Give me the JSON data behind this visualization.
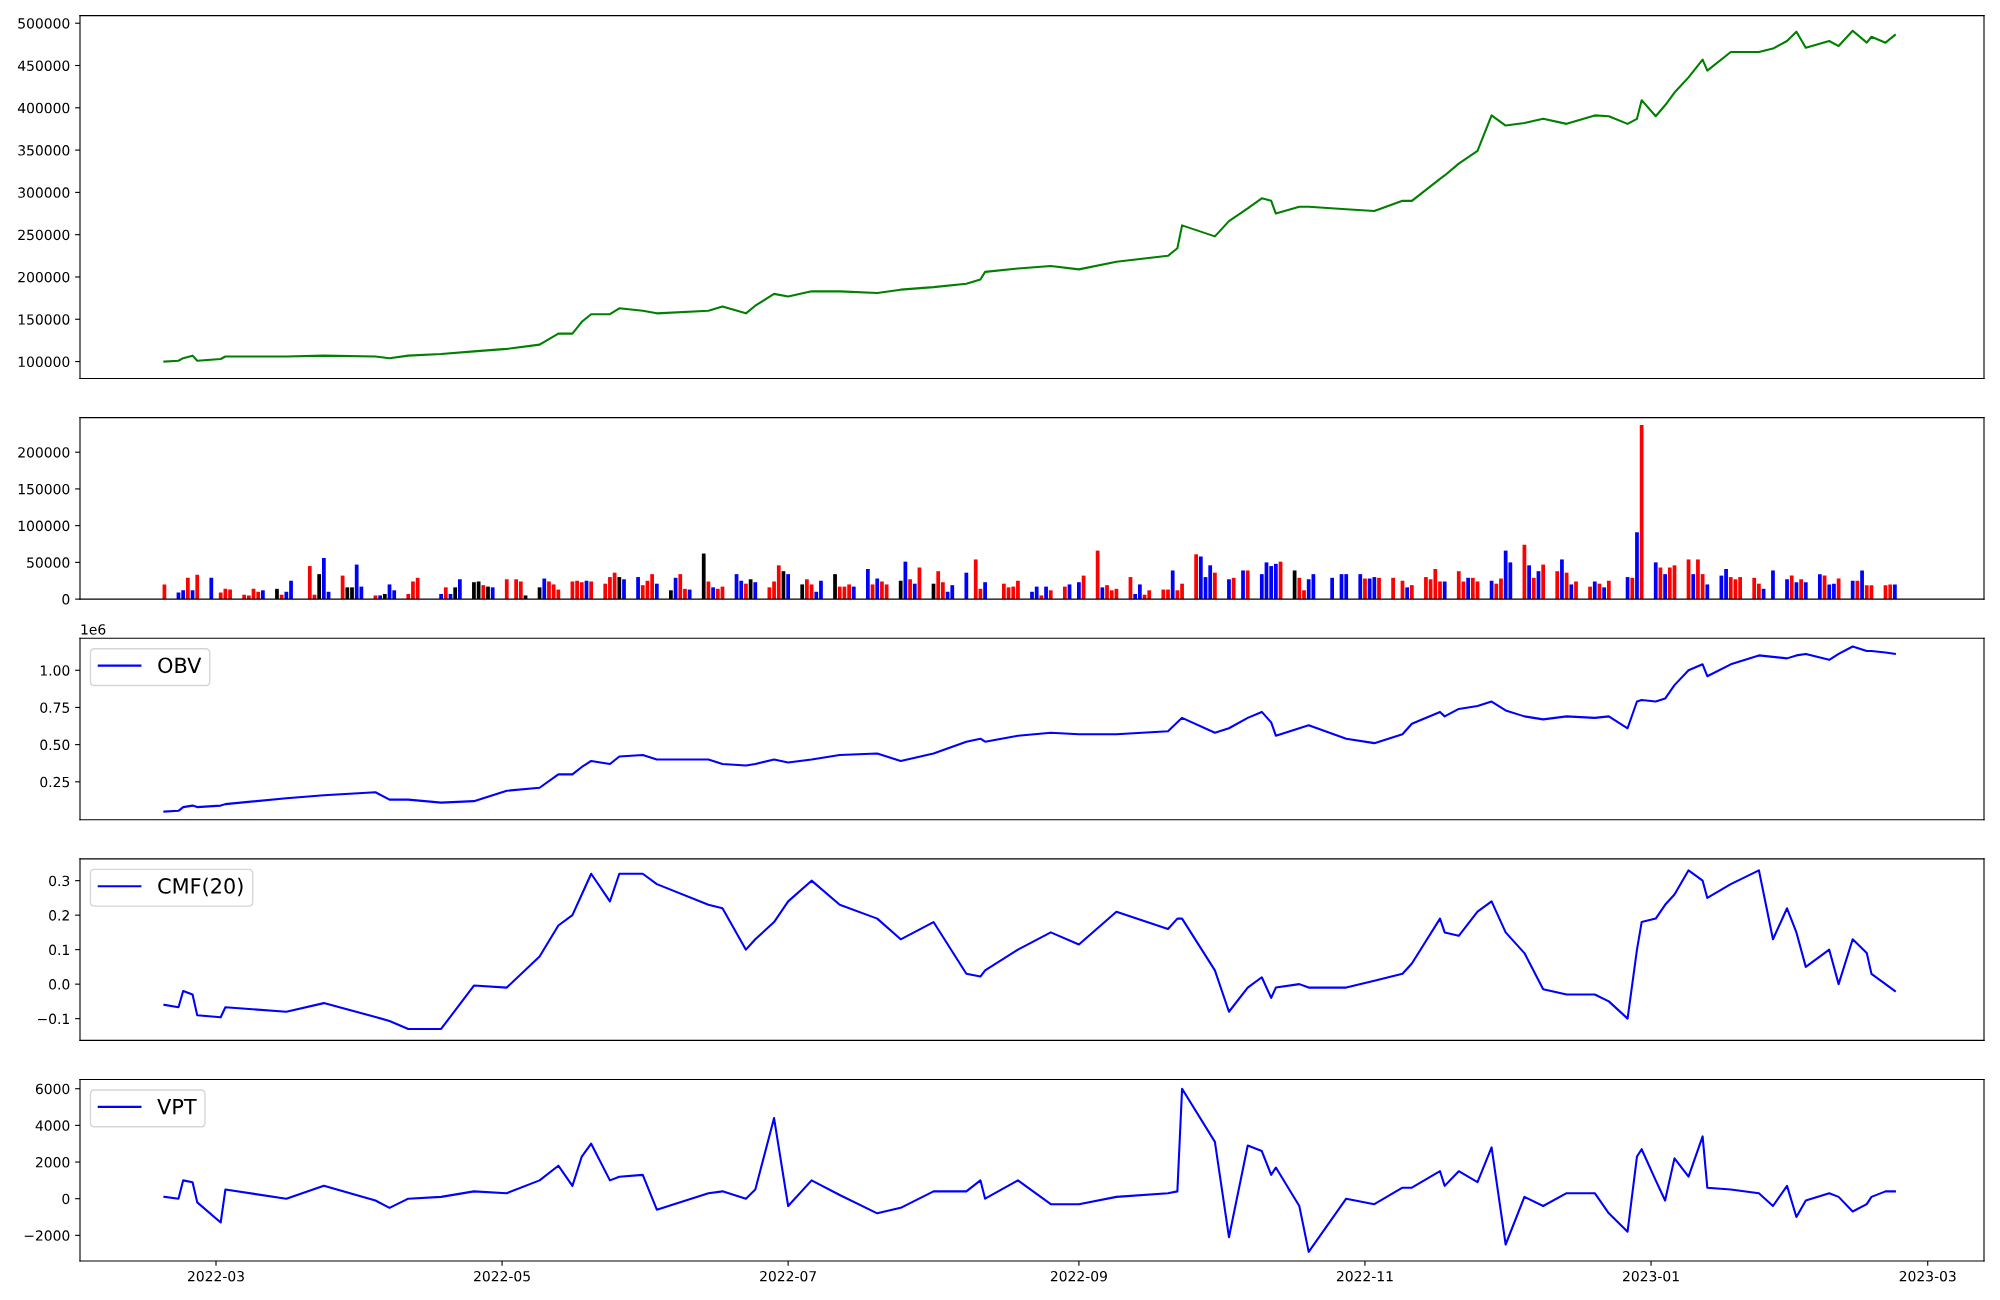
{
  "chart_data": [
    {
      "type": "line",
      "tick_labels": "y",
      "xlim": [
        "2022-01-31",
        "2023-03-13"
      ],
      "ylim": [
        80000,
        509000
      ],
      "yticks": [
        100000,
        150000,
        200000,
        250000,
        300000,
        350000,
        400000,
        450000,
        500000
      ],
      "x": [
        "2022-02-18",
        "2022-02-21",
        "2022-02-22",
        "2022-02-24",
        "2022-02-25",
        "2022-03-02",
        "2022-03-03",
        "2022-03-16",
        "2022-03-24",
        "2022-04-04",
        "2022-04-07",
        "2022-04-11",
        "2022-04-18",
        "2022-04-25",
        "2022-05-02",
        "2022-05-09",
        "2022-05-13",
        "2022-05-16",
        "2022-05-18",
        "2022-05-20",
        "2022-05-24",
        "2022-05-26",
        "2022-05-31",
        "2022-06-03",
        "2022-06-14",
        "2022-06-17",
        "2022-06-22",
        "2022-06-24",
        "2022-06-28",
        "2022-07-01",
        "2022-07-06",
        "2022-07-12",
        "2022-07-20",
        "2022-07-25",
        "2022-08-01",
        "2022-08-08",
        "2022-08-11",
        "2022-08-12",
        "2022-08-19",
        "2022-08-26",
        "2022-09-01",
        "2022-09-09",
        "2022-09-20",
        "2022-09-22",
        "2022-09-23",
        "2022-09-30",
        "2022-10-03",
        "2022-10-07",
        "2022-10-10",
        "2022-10-12",
        "2022-10-13",
        "2022-10-18",
        "2022-10-20",
        "2022-10-28",
        "2022-11-03",
        "2022-11-09",
        "2022-11-11",
        "2022-11-17",
        "2022-11-18",
        "2022-11-21",
        "2022-11-25",
        "2022-11-28",
        "2022-12-01",
        "2022-12-05",
        "2022-12-09",
        "2022-12-14",
        "2022-12-20",
        "2022-12-23",
        "2022-12-27",
        "2022-12-29",
        "2022-12-30",
        "2023-01-02",
        "2023-01-04",
        "2023-01-06",
        "2023-01-09",
        "2023-01-12",
        "2023-01-13",
        "2023-01-18",
        "2023-01-24",
        "2023-01-27",
        "2023-01-30",
        "2023-02-01",
        "2023-02-03",
        "2023-02-08",
        "2023-02-10",
        "2023-02-13",
        "2023-02-16",
        "2023-02-17",
        "2023-02-20",
        "2023-02-22"
      ],
      "series": [
        {
          "color": "#008000",
          "values": [
            100000,
            101000,
            104000,
            107000,
            101000,
            103000,
            106000,
            106000,
            107000,
            106000,
            104000,
            107000,
            109000,
            112000,
            115000,
            120000,
            133000,
            133000,
            147000,
            156000,
            156000,
            163000,
            160000,
            157000,
            160000,
            165000,
            157000,
            166000,
            180000,
            177000,
            183000,
            183000,
            181000,
            185000,
            188000,
            192000,
            197000,
            206000,
            210000,
            213000,
            209000,
            218000,
            225000,
            234000,
            261000,
            248000,
            266000,
            281000,
            293000,
            290000,
            275000,
            283000,
            283000,
            280000,
            278000,
            290000,
            290000,
            316000,
            320000,
            334000,
            349000,
            391000,
            379000,
            382000,
            387000,
            381000,
            391000,
            390000,
            381000,
            387000,
            409000,
            390000,
            403000,
            418000,
            436000,
            457000,
            444000,
            466000,
            466000,
            470000,
            479000,
            490000,
            471000,
            479000,
            473000,
            491000,
            477000,
            484000,
            477000,
            486000
          ]
        }
      ]
    },
    {
      "type": "bar",
      "tick_labels": "y",
      "xlim": [
        "2022-01-31",
        "2023-03-13"
      ],
      "ylim": [
        0,
        247000
      ],
      "yticks": [
        0,
        50000,
        100000,
        150000,
        200000
      ],
      "x": [
        "2022-02-18",
        "2022-02-21",
        "2022-02-22",
        "2022-02-23",
        "2022-02-24",
        "2022-02-25",
        "2022-02-28",
        "2022-03-02",
        "2022-03-03",
        "2022-03-04",
        "2022-03-07",
        "2022-03-08",
        "2022-03-09",
        "2022-03-10",
        "2022-03-11",
        "2022-03-14",
        "2022-03-15",
        "2022-03-16",
        "2022-03-17",
        "2022-03-21",
        "2022-03-22",
        "2022-03-23",
        "2022-03-24",
        "2022-03-25",
        "2022-03-28",
        "2022-03-29",
        "2022-03-30",
        "2022-03-31",
        "2022-04-01",
        "2022-04-04",
        "2022-04-05",
        "2022-04-06",
        "2022-04-07",
        "2022-04-08",
        "2022-04-11",
        "2022-04-12",
        "2022-04-13",
        "2022-04-18",
        "2022-04-19",
        "2022-04-20",
        "2022-04-21",
        "2022-04-22",
        "2022-04-25",
        "2022-04-26",
        "2022-04-27",
        "2022-04-28",
        "2022-04-29",
        "2022-05-02",
        "2022-05-04",
        "2022-05-05",
        "2022-05-06",
        "2022-05-09",
        "2022-05-10",
        "2022-05-11",
        "2022-05-12",
        "2022-05-13",
        "2022-05-16",
        "2022-05-17",
        "2022-05-18",
        "2022-05-19",
        "2022-05-20",
        "2022-05-23",
        "2022-05-24",
        "2022-05-25",
        "2022-05-26",
        "2022-05-27",
        "2022-05-30",
        "2022-05-31",
        "2022-06-01",
        "2022-06-02",
        "2022-06-03",
        "2022-06-06",
        "2022-06-07",
        "2022-06-08",
        "2022-06-09",
        "2022-06-10",
        "2022-06-13",
        "2022-06-14",
        "2022-06-15",
        "2022-06-16",
        "2022-06-17",
        "2022-06-20",
        "2022-06-21",
        "2022-06-22",
        "2022-06-23",
        "2022-06-24",
        "2022-06-27",
        "2022-06-28",
        "2022-06-29",
        "2022-06-30",
        "2022-07-01",
        "2022-07-04",
        "2022-07-05",
        "2022-07-06",
        "2022-07-07",
        "2022-07-08",
        "2022-07-11",
        "2022-07-12",
        "2022-07-13",
        "2022-07-14",
        "2022-07-15",
        "2022-07-18",
        "2022-07-19",
        "2022-07-20",
        "2022-07-21",
        "2022-07-22",
        "2022-07-25",
        "2022-07-26",
        "2022-07-27",
        "2022-07-28",
        "2022-07-29",
        "2022-08-01",
        "2022-08-02",
        "2022-08-03",
        "2022-08-04",
        "2022-08-05",
        "2022-08-08",
        "2022-08-10",
        "2022-08-11",
        "2022-08-12",
        "2022-08-16",
        "2022-08-17",
        "2022-08-18",
        "2022-08-19",
        "2022-08-22",
        "2022-08-23",
        "2022-08-24",
        "2022-08-25",
        "2022-08-26",
        "2022-08-29",
        "2022-08-30",
        "2022-09-01",
        "2022-09-02",
        "2022-09-05",
        "2022-09-06",
        "2022-09-07",
        "2022-09-08",
        "2022-09-09",
        "2022-09-12",
        "2022-09-13",
        "2022-09-14",
        "2022-09-15",
        "2022-09-16",
        "2022-09-19",
        "2022-09-20",
        "2022-09-21",
        "2022-09-22",
        "2022-09-23",
        "2022-09-26",
        "2022-09-27",
        "2022-09-28",
        "2022-09-29",
        "2022-09-30",
        "2022-10-03",
        "2022-10-04",
        "2022-10-06",
        "2022-10-07",
        "2022-10-10",
        "2022-10-11",
        "2022-10-12",
        "2022-10-13",
        "2022-10-14",
        "2022-10-17",
        "2022-10-18",
        "2022-10-19",
        "2022-10-20",
        "2022-10-21",
        "2022-10-25",
        "2022-10-27",
        "2022-10-28",
        "2022-10-31",
        "2022-11-01",
        "2022-11-02",
        "2022-11-03",
        "2022-11-04",
        "2022-11-07",
        "2022-11-09",
        "2022-11-10",
        "2022-11-11",
        "2022-11-14",
        "2022-11-15",
        "2022-11-16",
        "2022-11-17",
        "2022-11-18",
        "2022-11-21",
        "2022-11-22",
        "2022-11-23",
        "2022-11-24",
        "2022-11-25",
        "2022-11-28",
        "2022-11-29",
        "2022-11-30",
        "2022-12-01",
        "2022-12-02",
        "2022-12-05",
        "2022-12-06",
        "2022-12-07",
        "2022-12-08",
        "2022-12-09",
        "2022-12-12",
        "2022-12-13",
        "2022-12-14",
        "2022-12-15",
        "2022-12-16",
        "2022-12-19",
        "2022-12-20",
        "2022-12-21",
        "2022-12-22",
        "2022-12-23",
        "2022-12-27",
        "2022-12-28",
        "2022-12-29",
        "2022-12-30",
        "2023-01-02",
        "2023-01-03",
        "2023-01-04",
        "2023-01-05",
        "2023-01-06",
        "2023-01-09",
        "2023-01-10",
        "2023-01-11",
        "2023-01-12",
        "2023-01-13",
        "2023-01-16",
        "2023-01-17",
        "2023-01-18",
        "2023-01-19",
        "2023-01-20",
        "2023-01-23",
        "2023-01-24",
        "2023-01-25",
        "2023-01-27",
        "2023-01-30",
        "2023-01-31",
        "2023-02-01",
        "2023-02-02",
        "2023-02-03",
        "2023-02-06",
        "2023-02-07",
        "2023-02-08",
        "2023-02-09",
        "2023-02-10",
        "2023-02-13",
        "2023-02-14",
        "2023-02-15",
        "2023-02-16",
        "2023-02-17",
        "2023-02-20",
        "2023-02-21",
        "2023-02-22"
      ],
      "values": [
        20000,
        9000,
        12000,
        29000,
        12000,
        33000,
        29000,
        9000,
        14000,
        13000,
        6000,
        5000,
        14000,
        10000,
        12000,
        14000,
        6000,
        10000,
        25000,
        45000,
        6000,
        34000,
        56000,
        10000,
        32000,
        16000,
        16000,
        47000,
        17000,
        5000,
        5000,
        7000,
        20000,
        12000,
        7000,
        24000,
        29000,
        7000,
        16000,
        7000,
        16000,
        27000,
        23000,
        24000,
        19000,
        17000,
        16000,
        27000,
        27000,
        24000,
        5000,
        16000,
        28000,
        24000,
        20000,
        13000,
        24000,
        25000,
        23000,
        25000,
        24000,
        21000,
        30000,
        36000,
        30000,
        27000,
        30000,
        19000,
        25000,
        34000,
        21000,
        12000,
        29000,
        34000,
        14000,
        13000,
        62000,
        24000,
        16000,
        14000,
        17000,
        34000,
        25000,
        21000,
        27000,
        23000,
        16000,
        24000,
        46000,
        38000,
        34000,
        20000,
        27000,
        20000,
        10000,
        25000,
        34000,
        17000,
        17000,
        20000,
        17000,
        41000,
        20000,
        28000,
        24000,
        20000,
        25000,
        51000,
        27000,
        21000,
        43000,
        21000,
        38000,
        23000,
        10000,
        19000,
        36000,
        54000,
        14000,
        23000,
        21000,
        16000,
        17000,
        25000,
        10000,
        17000,
        5000,
        17000,
        12000,
        17000,
        20000,
        23000,
        32000,
        66000,
        16000,
        19000,
        12000,
        14000,
        30000,
        7000,
        20000,
        6000,
        12000,
        13000,
        13000,
        39000,
        12000,
        21000,
        61000,
        58000,
        30000,
        46000,
        36000,
        27000,
        29000,
        39000,
        39000,
        34000,
        50000,
        45000,
        48000,
        51000,
        39000,
        29000,
        12000,
        27000,
        34000,
        29000,
        34000,
        34000,
        34000,
        28000,
        28000,
        30000,
        29000,
        29000,
        25000,
        16000,
        19000,
        30000,
        27000,
        41000,
        24000,
        24000,
        38000,
        24000,
        29000,
        29000,
        24000,
        25000,
        21000,
        28000,
        66000,
        50000,
        74000,
        46000,
        29000,
        38000,
        47000,
        38000,
        54000,
        36000,
        20000,
        24000,
        17000,
        24000,
        21000,
        16000,
        25000,
        30000,
        29000,
        91000,
        237000,
        50000,
        43000,
        34000,
        43000,
        46000,
        54000,
        34000,
        54000,
        34000,
        20000,
        32000,
        41000,
        30000,
        27000,
        30000,
        29000,
        21000,
        14000,
        39000,
        27000,
        32000,
        23000,
        27000,
        23000,
        34000,
        32000,
        20000,
        21000,
        28000,
        25000,
        25000,
        39000,
        19000,
        19000,
        19000,
        20000,
        20000
      ],
      "colors": [
        "#ff0000",
        "#0000ff",
        "#0000ff",
        "#ff0000",
        "#0000ff",
        "#ff0000",
        "#0000ff",
        "#ff0000",
        "#ff0000",
        "#ff0000",
        "#ff0000",
        "#ff0000",
        "#ff0000",
        "#ff0000",
        "#0000ff",
        "#000000",
        "#ff0000",
        "#0000ff",
        "#0000ff",
        "#ff0000",
        "#ff0000",
        "#000000",
        "#0000ff",
        "#0000ff",
        "#ff0000",
        "#000000",
        "#000000",
        "#0000ff",
        "#0000ff",
        "#ff0000",
        "#0000ff",
        "#000000",
        "#0000ff",
        "#0000ff",
        "#ff0000",
        "#ff0000",
        "#ff0000",
        "#0000ff",
        "#ff0000",
        "#0000ff",
        "#000000",
        "#0000ff",
        "#000000",
        "#000000",
        "#ff0000",
        "#000000",
        "#0000ff",
        "#ff0000",
        "#ff0000",
        "#ff0000",
        "#000000",
        "#000000",
        "#0000ff",
        "#ff0000",
        "#ff0000",
        "#ff0000",
        "#ff0000",
        "#ff0000",
        "#ff0000",
        "#0000ff",
        "#ff0000",
        "#ff0000",
        "#ff0000",
        "#ff0000",
        "#000000",
        "#0000ff",
        "#0000ff",
        "#ff0000",
        "#ff0000",
        "#ff0000",
        "#0000ff",
        "#000000",
        "#0000ff",
        "#ff0000",
        "#ff0000",
        "#0000ff",
        "#000000",
        "#ff0000",
        "#0000ff",
        "#ff0000",
        "#ff0000",
        "#0000ff",
        "#0000ff",
        "#ff0000",
        "#000000",
        "#0000ff",
        "#ff0000",
        "#ff0000",
        "#ff0000",
        "#000000",
        "#0000ff",
        "#000000",
        "#ff0000",
        "#ff0000",
        "#0000ff",
        "#0000ff",
        "#000000",
        "#ff0000",
        "#ff0000",
        "#ff0000",
        "#0000ff",
        "#0000ff",
        "#ff0000",
        "#0000ff",
        "#ff0000",
        "#ff0000",
        "#000000",
        "#0000ff",
        "#ff0000",
        "#0000ff",
        "#ff0000",
        "#000000",
        "#ff0000",
        "#ff0000",
        "#0000ff",
        "#0000ff",
        "#0000ff",
        "#ff0000",
        "#ff0000",
        "#0000ff",
        "#ff0000",
        "#ff0000",
        "#ff0000",
        "#ff0000",
        "#0000ff",
        "#0000ff",
        "#ff0000",
        "#0000ff",
        "#ff0000",
        "#ff0000",
        "#0000ff",
        "#0000ff",
        "#ff0000",
        "#ff0000",
        "#0000ff",
        "#ff0000",
        "#ff0000",
        "#ff0000",
        "#ff0000",
        "#0000ff",
        "#0000ff",
        "#ff0000",
        "#ff0000",
        "#ff0000",
        "#ff0000",
        "#0000ff",
        "#ff0000",
        "#ff0000",
        "#ff0000",
        "#0000ff",
        "#0000ff",
        "#0000ff",
        "#ff0000",
        "#0000ff",
        "#ff0000",
        "#0000ff",
        "#ff0000",
        "#0000ff",
        "#0000ff",
        "#0000ff",
        "#0000ff",
        "#ff0000",
        "#000000",
        "#ff0000",
        "#ff0000",
        "#0000ff",
        "#0000ff",
        "#0000ff",
        "#0000ff",
        "#0000ff",
        "#0000ff",
        "#ff0000",
        "#0000ff",
        "#0000ff",
        "#ff0000",
        "#ff0000",
        "#ff0000",
        "#0000ff",
        "#ff0000",
        "#ff0000",
        "#ff0000",
        "#ff0000",
        "#ff0000",
        "#0000ff",
        "#ff0000",
        "#ff0000",
        "#0000ff",
        "#ff0000",
        "#ff0000",
        "#0000ff",
        "#ff0000",
        "#ff0000",
        "#0000ff",
        "#0000ff",
        "#ff0000",
        "#0000ff",
        "#ff0000",
        "#0000ff",
        "#ff0000",
        "#ff0000",
        "#0000ff",
        "#ff0000",
        "#0000ff",
        "#ff0000",
        "#ff0000",
        "#0000ff",
        "#ff0000",
        "#0000ff",
        "#ff0000",
        "#0000ff",
        "#ff0000",
        "#0000ff",
        "#ff0000",
        "#0000ff",
        "#ff0000",
        "#0000ff",
        "#ff0000",
        "#ff0000",
        "#ff0000",
        "#0000ff",
        "#ff0000",
        "#ff0000",
        "#0000ff",
        "#0000ff",
        "#0000ff",
        "#ff0000",
        "#ff0000",
        "#ff0000",
        "#ff0000",
        "#ff0000",
        "#0000ff",
        "#0000ff",
        "#0000ff",
        "#ff0000",
        "#0000ff",
        "#ff0000",
        "#0000ff",
        "#0000ff",
        "#ff0000",
        "#0000ff",
        "#0000ff",
        "#ff0000",
        "#0000ff",
        "#ff0000",
        "#0000ff",
        "#ff0000",
        "#ff0000",
        "#ff0000",
        "#ff0000",
        "#0000ff"
      ]
    },
    {
      "type": "line",
      "tick_labels": "y",
      "legend": "top left",
      "annotations": [
        "1e6"
      ],
      "xlim": [
        "2022-01-31",
        "2023-03-13"
      ],
      "ylim": [
        -0.005,
        1.215
      ],
      "yticks": [
        0.25,
        {
          "value": 0.5,
          "label": "0.50"
        },
        0.75,
        {
          "value": 1.0,
          "label": "1.00"
        }
      ],
      "x": [
        "2022-02-18",
        "2022-02-21",
        "2022-02-22",
        "2022-02-24",
        "2022-02-25",
        "2022-03-02",
        "2022-03-03",
        "2022-03-16",
        "2022-03-24",
        "2022-04-04",
        "2022-04-07",
        "2022-04-11",
        "2022-04-18",
        "2022-04-25",
        "2022-05-02",
        "2022-05-09",
        "2022-05-13",
        "2022-05-16",
        "2022-05-18",
        "2022-05-20",
        "2022-05-24",
        "2022-05-26",
        "2022-05-31",
        "2022-06-03",
        "2022-06-14",
        "2022-06-17",
        "2022-06-22",
        "2022-06-24",
        "2022-06-28",
        "2022-07-01",
        "2022-07-06",
        "2022-07-12",
        "2022-07-20",
        "2022-07-25",
        "2022-08-01",
        "2022-08-08",
        "2022-08-11",
        "2022-08-12",
        "2022-08-19",
        "2022-08-26",
        "2022-09-01",
        "2022-09-09",
        "2022-09-20",
        "2022-09-22",
        "2022-09-23",
        "2022-09-30",
        "2022-10-03",
        "2022-10-07",
        "2022-10-10",
        "2022-10-12",
        "2022-10-13",
        "2022-10-18",
        "2022-10-20",
        "2022-10-28",
        "2022-11-03",
        "2022-11-09",
        "2022-11-11",
        "2022-11-17",
        "2022-11-18",
        "2022-11-21",
        "2022-11-25",
        "2022-11-28",
        "2022-12-01",
        "2022-12-05",
        "2022-12-09",
        "2022-12-14",
        "2022-12-20",
        "2022-12-23",
        "2022-12-27",
        "2022-12-29",
        "2022-12-30",
        "2023-01-02",
        "2023-01-04",
        "2023-01-06",
        "2023-01-09",
        "2023-01-12",
        "2023-01-13",
        "2023-01-18",
        "2023-01-24",
        "2023-01-27",
        "2023-01-30",
        "2023-02-01",
        "2023-02-03",
        "2023-02-08",
        "2023-02-10",
        "2023-02-13",
        "2023-02-16",
        "2023-02-17",
        "2023-02-20",
        "2023-02-22"
      ],
      "series": [
        {
          "name": "OBV",
          "color": "#0000ff",
          "values": [
            0.05,
            0.055,
            0.08,
            0.09,
            0.08,
            0.09,
            0.1,
            0.14,
            0.16,
            0.18,
            0.13,
            0.13,
            0.11,
            0.12,
            0.19,
            0.21,
            0.3,
            0.3,
            0.35,
            0.39,
            0.37,
            0.42,
            0.43,
            0.4,
            0.4,
            0.37,
            0.36,
            0.37,
            0.4,
            0.38,
            0.4,
            0.43,
            0.44,
            0.39,
            0.44,
            0.52,
            0.54,
            0.52,
            0.56,
            0.58,
            0.57,
            0.57,
            0.59,
            0.65,
            0.68,
            0.58,
            0.61,
            0.68,
            0.72,
            0.65,
            0.56,
            0.61,
            0.63,
            0.54,
            0.51,
            0.57,
            0.64,
            0.72,
            0.69,
            0.74,
            0.76,
            0.79,
            0.73,
            0.69,
            0.67,
            0.69,
            0.68,
            0.69,
            0.61,
            0.79,
            0.8,
            0.79,
            0.81,
            0.9,
            1.0,
            1.04,
            0.96,
            1.04,
            1.1,
            1.09,
            1.08,
            1.1,
            1.11,
            1.07,
            1.11,
            1.16,
            1.13,
            1.13,
            1.12,
            1.11
          ]
        }
      ]
    },
    {
      "type": "line",
      "tick_labels": "y",
      "legend": "top left",
      "xlim": [
        "2022-01-31",
        "2023-03-13"
      ],
      "ylim": [
        -0.163,
        0.363
      ],
      "yticks": [
        {
          "value": -0.1,
          "label": "−0.1"
        },
        {
          "value": 0,
          "label": "0.0"
        },
        0.1,
        0.2,
        0.3
      ],
      "x": [
        "2022-02-18",
        "2022-02-21",
        "2022-02-22",
        "2022-02-24",
        "2022-02-25",
        "2022-03-02",
        "2022-03-03",
        "2022-03-16",
        "2022-03-24",
        "2022-04-04",
        "2022-04-07",
        "2022-04-11",
        "2022-04-18",
        "2022-04-25",
        "2022-05-02",
        "2022-05-09",
        "2022-05-13",
        "2022-05-16",
        "2022-05-18",
        "2022-05-20",
        "2022-05-24",
        "2022-05-26",
        "2022-05-31",
        "2022-06-03",
        "2022-06-14",
        "2022-06-17",
        "2022-06-22",
        "2022-06-24",
        "2022-06-28",
        "2022-07-01",
        "2022-07-06",
        "2022-07-12",
        "2022-07-20",
        "2022-07-25",
        "2022-08-01",
        "2022-08-08",
        "2022-08-11",
        "2022-08-12",
        "2022-08-19",
        "2022-08-26",
        "2022-09-01",
        "2022-09-09",
        "2022-09-20",
        "2022-09-22",
        "2022-09-23",
        "2022-09-30",
        "2022-10-03",
        "2022-10-07",
        "2022-10-10",
        "2022-10-12",
        "2022-10-13",
        "2022-10-18",
        "2022-10-20",
        "2022-10-28",
        "2022-11-03",
        "2022-11-09",
        "2022-11-11",
        "2022-11-17",
        "2022-11-18",
        "2022-11-21",
        "2022-11-25",
        "2022-11-28",
        "2022-12-01",
        "2022-12-05",
        "2022-12-09",
        "2022-12-14",
        "2022-12-20",
        "2022-12-23",
        "2022-12-27",
        "2022-12-29",
        "2022-12-30",
        "2023-01-02",
        "2023-01-04",
        "2023-01-06",
        "2023-01-09",
        "2023-01-12",
        "2023-01-13",
        "2023-01-18",
        "2023-01-24",
        "2023-01-27",
        "2023-01-30",
        "2023-02-01",
        "2023-02-03",
        "2023-02-08",
        "2023-02-10",
        "2023-02-13",
        "2023-02-16",
        "2023-02-17",
        "2023-02-20",
        "2023-02-22"
      ],
      "series": [
        {
          "name": "CMF(20)",
          "color": "#0000ff",
          "values": [
            -0.06,
            -0.067,
            -0.02,
            -0.03,
            -0.09,
            -0.096,
            -0.067,
            -0.08,
            -0.055,
            -0.095,
            -0.107,
            -0.13,
            -0.13,
            -0.004,
            -0.01,
            0.08,
            0.17,
            0.2,
            0.26,
            0.32,
            0.24,
            0.32,
            0.32,
            0.29,
            0.23,
            0.22,
            0.1,
            0.13,
            0.18,
            0.24,
            0.3,
            0.23,
            0.19,
            0.13,
            0.18,
            0.03,
            0.022,
            0.04,
            0.1,
            0.15,
            0.115,
            0.21,
            0.16,
            0.19,
            0.19,
            0.04,
            -0.08,
            -0.01,
            0.02,
            -0.04,
            -0.01,
            0.0,
            -0.01,
            -0.01,
            0.01,
            0.03,
            0.06,
            0.19,
            0.15,
            0.14,
            0.21,
            0.24,
            0.15,
            0.09,
            -0.015,
            -0.03,
            -0.03,
            -0.05,
            -0.1,
            0.1,
            0.18,
            0.19,
            0.23,
            0.26,
            0.33,
            0.3,
            0.25,
            0.29,
            0.33,
            0.13,
            0.22,
            0.15,
            0.05,
            0.1,
            0.0,
            0.13,
            0.09,
            0.03,
            0.0,
            -0.02
          ]
        }
      ]
    },
    {
      "type": "line",
      "legend": "top left",
      "xlim": [
        "2022-01-31",
        "2023-03-13"
      ],
      "xticks": [
        {
          "value": "2022-03-01",
          "label": "2022-03"
        },
        {
          "value": "2022-05-01",
          "label": "2022-05"
        },
        {
          "value": "2022-07-01",
          "label": "2022-07"
        },
        {
          "value": "2022-09-01",
          "label": "2022-09"
        },
        {
          "value": "2022-11-01",
          "label": "2022-11"
        },
        {
          "value": "2023-01-01",
          "label": "2023-01"
        },
        {
          "value": "2023-03-01",
          "label": "2023-03"
        }
      ],
      "ylim": [
        -3400,
        6500
      ],
      "yticks": [
        {
          "value": -2000,
          "label": "−2000"
        },
        0,
        2000,
        4000,
        6000
      ],
      "x": [
        "2022-02-18",
        "2022-02-21",
        "2022-02-22",
        "2022-02-24",
        "2022-02-25",
        "2022-03-02",
        "2022-03-03",
        "2022-03-16",
        "2022-03-24",
        "2022-04-04",
        "2022-04-07",
        "2022-04-11",
        "2022-04-18",
        "2022-04-25",
        "2022-05-02",
        "2022-05-09",
        "2022-05-13",
        "2022-05-16",
        "2022-05-18",
        "2022-05-20",
        "2022-05-24",
        "2022-05-26",
        "2022-05-31",
        "2022-06-03",
        "2022-06-14",
        "2022-06-17",
        "2022-06-22",
        "2022-06-24",
        "2022-06-28",
        "2022-07-01",
        "2022-07-06",
        "2022-07-12",
        "2022-07-20",
        "2022-07-25",
        "2022-08-01",
        "2022-08-08",
        "2022-08-11",
        "2022-08-12",
        "2022-08-19",
        "2022-08-26",
        "2022-09-01",
        "2022-09-09",
        "2022-09-20",
        "2022-09-22",
        "2022-09-23",
        "2022-09-30",
        "2022-10-03",
        "2022-10-07",
        "2022-10-10",
        "2022-10-12",
        "2022-10-13",
        "2022-10-18",
        "2022-10-20",
        "2022-10-28",
        "2022-11-03",
        "2022-11-09",
        "2022-11-11",
        "2022-11-17",
        "2022-11-18",
        "2022-11-21",
        "2022-11-25",
        "2022-11-28",
        "2022-12-01",
        "2022-12-05",
        "2022-12-09",
        "2022-12-14",
        "2022-12-20",
        "2022-12-23",
        "2022-12-27",
        "2022-12-29",
        "2022-12-30",
        "2023-01-02",
        "2023-01-04",
        "2023-01-06",
        "2023-01-09",
        "2023-01-12",
        "2023-01-13",
        "2023-01-18",
        "2023-01-24",
        "2023-01-27",
        "2023-01-30",
        "2023-02-01",
        "2023-02-03",
        "2023-02-08",
        "2023-02-10",
        "2023-02-13",
        "2023-02-16",
        "2023-02-17",
        "2023-02-20",
        "2023-02-22"
      ],
      "series": [
        {
          "name": "VPT",
          "color": "#0000ff",
          "values": [
            100,
            0,
            1000,
            900,
            -200,
            -1300,
            500,
            0,
            700,
            -100,
            -500,
            0,
            100,
            400,
            300,
            1000,
            1800,
            700,
            2300,
            3000,
            1000,
            1200,
            1300,
            -600,
            300,
            400,
            0,
            500,
            4400,
            -400,
            1000,
            200,
            -800,
            -500,
            400,
            400,
            1000,
            0,
            1000,
            -300,
            -300,
            100,
            300,
            400,
            6000,
            3100,
            -2100,
            2900,
            2600,
            1300,
            1700,
            -400,
            -2900,
            0,
            -300,
            600,
            600,
            1500,
            700,
            1500,
            900,
            2800,
            -2500,
            100,
            -400,
            300,
            300,
            -800,
            -1800,
            2300,
            2700,
            1000,
            -100,
            2200,
            1200,
            3400,
            600,
            500,
            300,
            -400,
            700,
            -1000,
            -100,
            300,
            100,
            -700,
            -300,
            100,
            400,
            400
          ]
        }
      ]
    }
  ]
}
